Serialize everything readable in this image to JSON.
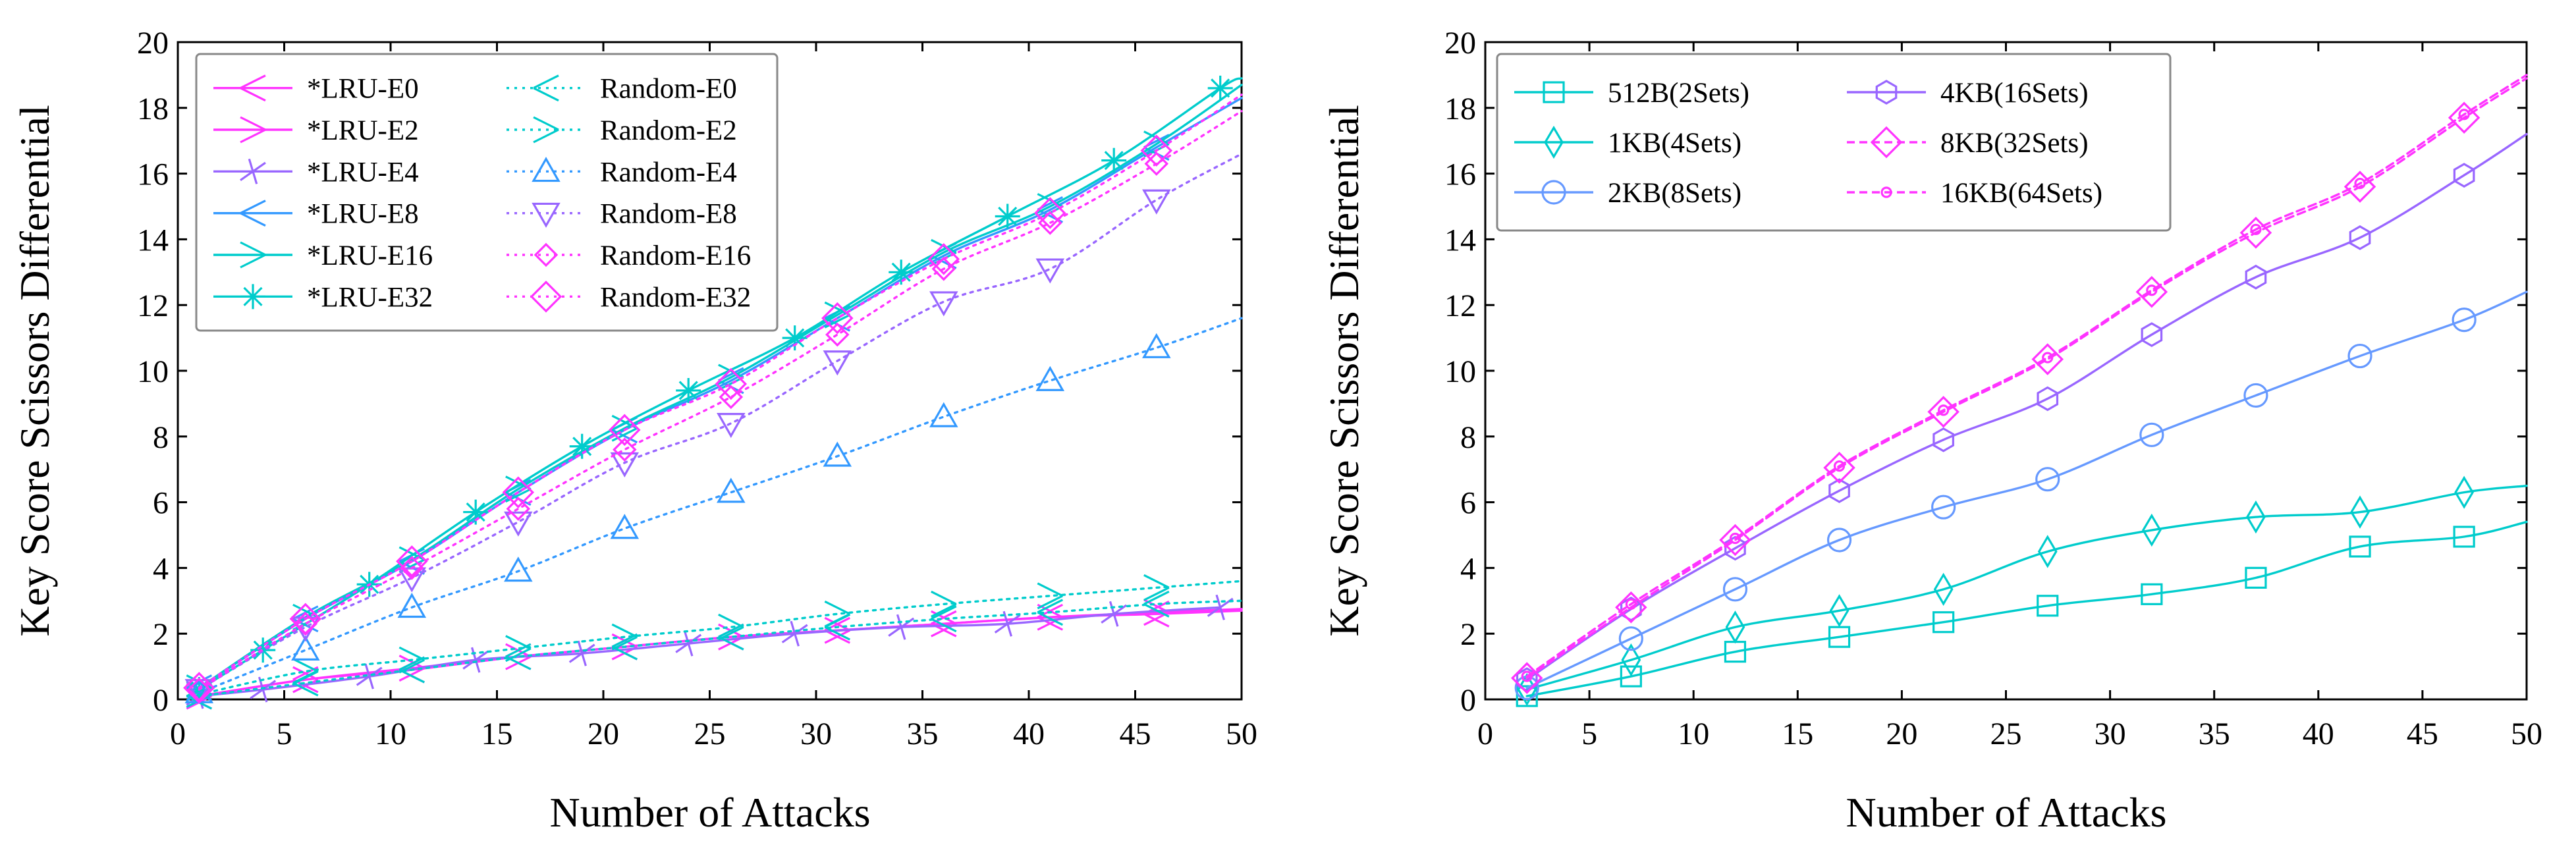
{
  "chart_data": [
    {
      "type": "line",
      "xlabel": "Number of Attacks",
      "ylabel": "Key Score Scissors Differential",
      "xlim": [
        0,
        50
      ],
      "ylim": [
        0,
        20
      ],
      "xticks": [
        0,
        5,
        10,
        15,
        20,
        25,
        30,
        35,
        40,
        45,
        50
      ],
      "yticks": [
        0,
        2,
        4,
        6,
        8,
        10,
        12,
        14,
        16,
        18,
        20
      ],
      "grid": false,
      "legend_position": "top-left",
      "legend_columns": 2,
      "series": [
        {
          "name": "*LRU-E0",
          "color": "#ff33ff",
          "dash": "solid",
          "marker": "tri-left",
          "x": [
            1,
            6,
            11,
            16,
            21,
            26,
            31,
            36,
            41,
            46,
            50
          ],
          "y": [
            0.1,
            0.6,
            0.9,
            1.3,
            1.6,
            1.9,
            2.1,
            2.3,
            2.5,
            2.6,
            2.7
          ]
        },
        {
          "name": "*LRU-E2",
          "color": "#ff33ff",
          "dash": "solid",
          "marker": "tri-right",
          "x": [
            1,
            6,
            11,
            16,
            21,
            26,
            31,
            36,
            41,
            46,
            50
          ],
          "y": [
            0.1,
            0.6,
            0.95,
            1.3,
            1.6,
            1.9,
            2.1,
            2.3,
            2.5,
            2.65,
            2.75
          ]
        },
        {
          "name": "*LRU-E4",
          "color": "#9966ff",
          "dash": "solid",
          "marker": "x",
          "x": [
            1,
            4,
            9,
            14,
            19,
            24,
            29,
            34,
            39,
            44,
            49
          ],
          "y": [
            0.1,
            0.3,
            0.7,
            1.2,
            1.4,
            1.7,
            2.0,
            2.2,
            2.3,
            2.6,
            2.8
          ]
        },
        {
          "name": "*LRU-E8",
          "color": "#3399ff",
          "dash": "solid",
          "marker": "tri-left",
          "x": [
            1,
            6,
            11,
            16,
            21,
            26,
            31,
            36,
            41,
            46,
            50
          ],
          "y": [
            0.35,
            2.45,
            4.2,
            6.3,
            8.2,
            9.7,
            11.6,
            13.5,
            14.9,
            16.8,
            18.3
          ]
        },
        {
          "name": "*LRU-E16",
          "color": "#00cccc",
          "dash": "solid",
          "marker": "tri-right",
          "x": [
            1,
            6,
            11,
            16,
            21,
            26,
            31,
            36,
            41,
            46,
            50
          ],
          "y": [
            0.35,
            2.5,
            4.25,
            6.4,
            8.25,
            9.8,
            11.7,
            13.6,
            15.0,
            16.9,
            18.7
          ]
        },
        {
          "name": "*LRU-E32",
          "color": "#00cccc",
          "dash": "solid",
          "marker": "star",
          "x": [
            1,
            4,
            9,
            14,
            19,
            24,
            29,
            34,
            39,
            44,
            49,
            50
          ],
          "y": [
            0.3,
            1.5,
            3.5,
            5.7,
            7.7,
            9.4,
            11.0,
            13.0,
            14.7,
            16.4,
            18.6,
            18.9
          ]
        },
        {
          "name": "Random-E0",
          "color": "#00cccc",
          "dash": "dotted",
          "marker": "tri-left",
          "x": [
            1,
            6,
            11,
            16,
            21,
            26,
            31,
            36,
            41,
            46,
            50
          ],
          "y": [
            0.1,
            0.5,
            0.9,
            1.3,
            1.6,
            1.9,
            2.2,
            2.45,
            2.65,
            2.9,
            3.0
          ]
        },
        {
          "name": "Random-E2",
          "color": "#00cccc",
          "dash": "dotted",
          "marker": "tri-right",
          "x": [
            1,
            6,
            11,
            16,
            21,
            26,
            31,
            36,
            41,
            46,
            50
          ],
          "y": [
            0.15,
            0.85,
            1.2,
            1.55,
            1.9,
            2.2,
            2.6,
            2.9,
            3.15,
            3.4,
            3.6
          ]
        },
        {
          "name": "Random-E4",
          "color": "#3399ff",
          "dash": "dotted",
          "marker": "tri-up",
          "x": [
            1,
            6,
            11,
            16,
            21,
            26,
            31,
            36,
            41,
            46,
            50
          ],
          "y": [
            0.2,
            1.5,
            2.8,
            3.9,
            5.2,
            6.3,
            7.4,
            8.6,
            9.7,
            10.7,
            11.6
          ]
        },
        {
          "name": "Random-E8",
          "color": "#9966ff",
          "dash": "dotted",
          "marker": "tri-down",
          "x": [
            1,
            6,
            11,
            16,
            21,
            26,
            31,
            36,
            41,
            46,
            50
          ],
          "y": [
            0.3,
            2.2,
            3.7,
            5.4,
            7.2,
            8.4,
            10.3,
            12.1,
            13.1,
            15.2,
            16.6
          ]
        },
        {
          "name": "Random-E16",
          "color": "#ff33ff",
          "dash": "dotted",
          "marker": "diamond-small",
          "x": [
            1,
            6,
            11,
            16,
            21,
            26,
            31,
            36,
            41,
            46,
            50
          ],
          "y": [
            0.3,
            2.3,
            4.0,
            5.8,
            7.6,
            9.2,
            11.1,
            13.1,
            14.5,
            16.3,
            17.9
          ]
        },
        {
          "name": "Random-E32",
          "color": "#ff33ff",
          "dash": "dotted",
          "marker": "diamond",
          "x": [
            1,
            6,
            11,
            16,
            21,
            26,
            31,
            36,
            41,
            46,
            50
          ],
          "y": [
            0.35,
            2.45,
            4.2,
            6.3,
            8.2,
            9.6,
            11.6,
            13.4,
            14.8,
            16.7,
            18.4
          ]
        }
      ]
    },
    {
      "type": "line",
      "xlabel": "Number of Attacks",
      "ylabel": "Key Score Scissors Differential",
      "xlim": [
        0,
        50
      ],
      "ylim": [
        0,
        20
      ],
      "xticks": [
        0,
        5,
        10,
        15,
        20,
        25,
        30,
        35,
        40,
        45,
        50
      ],
      "yticks": [
        0,
        2,
        4,
        6,
        8,
        10,
        12,
        14,
        16,
        18,
        20
      ],
      "grid": false,
      "legend_position": "top-left",
      "legend_columns": 2,
      "series": [
        {
          "name": "512B(2Sets)",
          "color": "#00cccc",
          "dash": "solid",
          "marker": "square",
          "x": [
            2,
            7,
            12,
            17,
            22,
            27,
            32,
            37,
            42,
            47,
            50
          ],
          "y": [
            0.1,
            0.7,
            1.45,
            1.9,
            2.35,
            2.85,
            3.2,
            3.7,
            4.65,
            4.95,
            5.4
          ]
        },
        {
          "name": "1KB(4Sets)",
          "color": "#00cccc",
          "dash": "solid",
          "marker": "thin-diamond",
          "x": [
            2,
            7,
            12,
            17,
            22,
            27,
            32,
            37,
            42,
            47,
            50
          ],
          "y": [
            0.3,
            1.2,
            2.2,
            2.7,
            3.35,
            4.5,
            5.15,
            5.55,
            5.7,
            6.3,
            6.5
          ]
        },
        {
          "name": "2KB(8Sets)",
          "color": "#6699ff",
          "dash": "solid",
          "marker": "circle",
          "x": [
            2,
            7,
            12,
            17,
            22,
            27,
            32,
            37,
            42,
            47,
            50
          ],
          "y": [
            0.35,
            1.85,
            3.35,
            4.85,
            5.85,
            6.7,
            8.05,
            9.25,
            10.45,
            11.55,
            12.4
          ]
        },
        {
          "name": "4KB(16Sets)",
          "color": "#9966ff",
          "dash": "solid",
          "marker": "hexagon",
          "x": [
            2,
            7,
            12,
            17,
            22,
            27,
            32,
            37,
            42,
            47,
            50
          ],
          "y": [
            0.6,
            2.75,
            4.6,
            6.35,
            7.9,
            9.15,
            11.1,
            12.85,
            14.05,
            15.95,
            17.2
          ]
        },
        {
          "name": "8KB(32Sets)",
          "color": "#ff33ff",
          "dash": "dashed",
          "marker": "diamond",
          "x": [
            2,
            7,
            12,
            17,
            22,
            27,
            32,
            37,
            42,
            47,
            50
          ],
          "y": [
            0.65,
            2.8,
            4.85,
            7.05,
            8.75,
            10.35,
            12.4,
            14.2,
            15.6,
            17.7,
            18.9
          ]
        },
        {
          "name": "16KB(64Sets)",
          "color": "#ff33ff",
          "dash": "dashed",
          "marker": "dot",
          "x": [
            2,
            7,
            12,
            17,
            22,
            27,
            32,
            37,
            42,
            47,
            50
          ],
          "y": [
            0.7,
            2.9,
            4.9,
            7.1,
            8.8,
            10.4,
            12.45,
            14.3,
            15.7,
            17.8,
            19.0
          ]
        }
      ]
    }
  ]
}
